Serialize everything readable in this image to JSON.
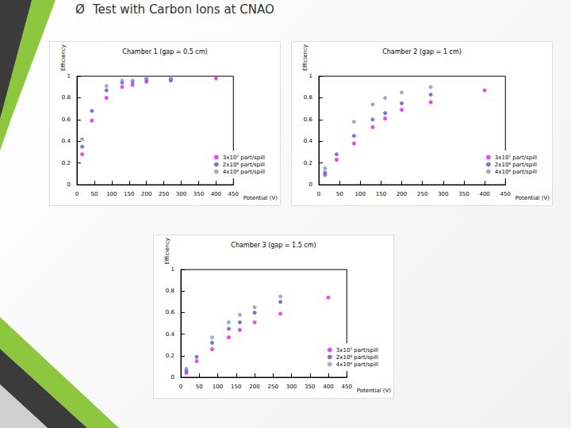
{
  "title": "Test with Carbon Ions at CNAO",
  "bullet": "Ø",
  "chart_data": [
    {
      "type": "scatter",
      "title": "Chamber 1 (gap = 0.5 cm)",
      "x_label": "Potential (V)",
      "y_label": "Efficiency",
      "x": [
        15,
        43,
        85,
        130,
        160,
        200,
        270,
        400
      ],
      "series": [
        {
          "name": "3x10⁷ part/spill",
          "color": "#e020e0",
          "values": [
            0.28,
            0.59,
            0.8,
            0.9,
            0.92,
            0.95,
            0.96,
            0.98
          ]
        },
        {
          "name": "2x10⁸ part/spill",
          "color": "#5555d5",
          "values": [
            0.35,
            0.68,
            0.87,
            0.94,
            0.95,
            0.97,
            0.97,
            null
          ]
        },
        {
          "name": "4x10⁸ part/spill",
          "color": "#8a96c4",
          "values": [
            0.42,
            null,
            0.91,
            0.96,
            0.96,
            0.98,
            0.98,
            null
          ]
        }
      ],
      "xlim": [
        0,
        450
      ],
      "xticks": [
        0,
        50,
        100,
        150,
        200,
        250,
        300,
        350,
        400,
        450
      ],
      "ylim": [
        0,
        1
      ],
      "yticks": [
        0,
        0.2,
        0.4,
        0.6,
        0.8,
        1
      ],
      "grid": false,
      "legend": "lower right",
      "marker": "circle"
    },
    {
      "type": "scatter",
      "title": "Chamber 2 (gap = 1 cm)",
      "x_label": "Potential (V)",
      "y_label": "Efficiency",
      "x": [
        15,
        43,
        85,
        130,
        160,
        200,
        270,
        400
      ],
      "series": [
        {
          "name": "3x10⁷ part/spill",
          "color": "#e020e0",
          "values": [
            0.09,
            0.23,
            0.38,
            0.53,
            0.61,
            0.69,
            0.76,
            0.87
          ]
        },
        {
          "name": "2x10⁸ part/spill",
          "color": "#5555d5",
          "values": [
            0.11,
            0.28,
            0.45,
            0.6,
            0.66,
            0.75,
            0.83,
            null
          ]
        },
        {
          "name": "4x10⁸ part/spill",
          "color": "#8a96c4",
          "values": [
            0.15,
            null,
            0.58,
            0.74,
            0.8,
            0.85,
            0.9,
            null
          ]
        }
      ],
      "xlim": [
        0,
        450
      ],
      "xticks": [
        0,
        50,
        100,
        150,
        200,
        250,
        300,
        350,
        400,
        450
      ],
      "ylim": [
        0,
        1
      ],
      "yticks": [
        0,
        0.2,
        0.4,
        0.6,
        0.8,
        1
      ],
      "grid": false,
      "legend": "lower right",
      "marker": "circle"
    },
    {
      "type": "scatter",
      "title": "Chamber 3 (gap = 1.5 cm)",
      "x_label": "Potential (V)",
      "y_label": "Efficiency",
      "x": [
        15,
        43,
        85,
        130,
        160,
        200,
        270,
        400
      ],
      "series": [
        {
          "name": "3x10⁷ part/spill",
          "color": "#e020e0",
          "values": [
            0.04,
            0.15,
            0.26,
            0.37,
            0.44,
            0.51,
            0.59,
            0.74
          ]
        },
        {
          "name": "2x10⁸ part/spill",
          "color": "#5555d5",
          "values": [
            0.06,
            0.19,
            0.32,
            0.45,
            0.51,
            0.6,
            0.7,
            null
          ]
        },
        {
          "name": "4x10⁸ part/spill",
          "color": "#8a96c4",
          "values": [
            0.08,
            null,
            0.37,
            0.51,
            0.58,
            0.65,
            0.75,
            null
          ]
        }
      ],
      "xlim": [
        0,
        450
      ],
      "xticks": [
        0,
        50,
        100,
        150,
        200,
        250,
        300,
        350,
        400,
        450
      ],
      "ylim": [
        0,
        1
      ],
      "yticks": [
        0,
        0.2,
        0.4,
        0.6,
        0.8,
        1
      ],
      "grid": false,
      "legend": "lower right",
      "marker": "circle"
    }
  ]
}
